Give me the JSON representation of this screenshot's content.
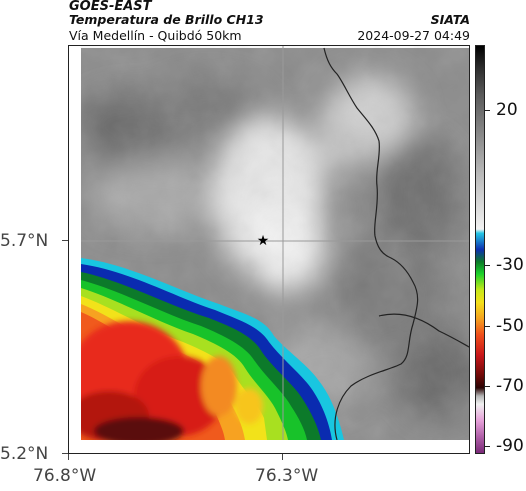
{
  "header": {
    "title": "GOES-EAST",
    "product": "Temperatura de Brillo CH13",
    "organization": "SIATA",
    "region": "Vía Medellín - Quibdó 50km",
    "timestamp": "2024-09-27 04:49"
  },
  "map": {
    "lat_labels": [
      "5.7°N",
      "5.2°N"
    ],
    "lon_labels": [
      "76.8°W",
      "76.3°W"
    ],
    "marker_icon": "star-icon"
  },
  "colorbar": {
    "labels": [
      "20",
      "-30",
      "-50",
      "-70",
      "-90"
    ]
  }
}
